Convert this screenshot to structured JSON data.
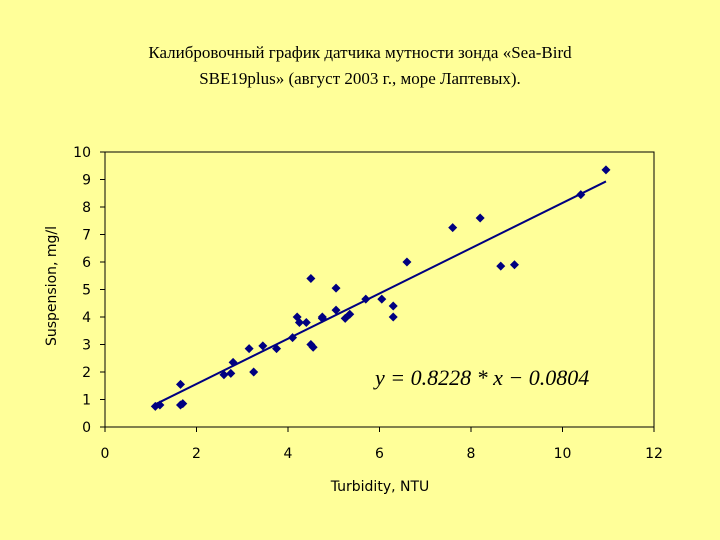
{
  "title_line1": "Калибровочный график датчика мутности зонда «Sea-Bird",
  "title_line2": "SBE19plus» (август 2003 г., море Лаптевых).",
  "colors": {
    "background": "#ffff99",
    "points": "#000080",
    "trendline": "#000080"
  },
  "chart_data": {
    "type": "scatter",
    "title": "Калибровочный график датчика мутности зонда «Sea-Bird SBE19plus» (август 2003 г., море Лаптевых).",
    "xlabel": "Turbidity, NTU",
    "ylabel": "Suspension, mg/l",
    "xlim": [
      0,
      12
    ],
    "ylim": [
      0,
      10
    ],
    "x_ticks": [
      "0",
      "2",
      "4",
      "6",
      "8",
      "10",
      "12"
    ],
    "y_ticks": [
      "0",
      "1",
      "2",
      "3",
      "4",
      "5",
      "6",
      "7",
      "8",
      "9",
      "10"
    ],
    "grid": false,
    "legend": "none",
    "annotation": "y = 0.8228 * x − 0.0804",
    "points": [
      [
        1.1,
        0.75
      ],
      [
        1.2,
        0.8
      ],
      [
        1.65,
        0.8
      ],
      [
        1.7,
        0.85
      ],
      [
        1.65,
        1.55
      ],
      [
        2.6,
        1.9
      ],
      [
        2.75,
        1.95
      ],
      [
        2.8,
        2.35
      ],
      [
        3.15,
        2.85
      ],
      [
        3.25,
        2.0
      ],
      [
        3.45,
        2.95
      ],
      [
        3.75,
        2.85
      ],
      [
        4.1,
        3.25
      ],
      [
        4.2,
        4.0
      ],
      [
        4.25,
        3.8
      ],
      [
        4.4,
        3.8
      ],
      [
        4.5,
        3.0
      ],
      [
        4.55,
        2.9
      ],
      [
        4.5,
        5.4
      ],
      [
        4.75,
        4.0
      ],
      [
        4.75,
        3.95
      ],
      [
        5.05,
        5.05
      ],
      [
        5.05,
        4.25
      ],
      [
        5.25,
        3.95
      ],
      [
        5.35,
        4.1
      ],
      [
        5.7,
        4.65
      ],
      [
        6.05,
        4.65
      ],
      [
        6.3,
        4.0
      ],
      [
        6.3,
        4.4
      ],
      [
        6.6,
        6.0
      ],
      [
        7.6,
        7.25
      ],
      [
        8.2,
        7.6
      ],
      [
        8.65,
        5.85
      ],
      [
        8.95,
        5.9
      ],
      [
        10.4,
        8.45
      ],
      [
        10.95,
        9.35
      ]
    ],
    "trendline": {
      "slope": 0.8228,
      "intercept": -0.0804,
      "x_range": [
        1.1,
        10.95
      ]
    }
  }
}
